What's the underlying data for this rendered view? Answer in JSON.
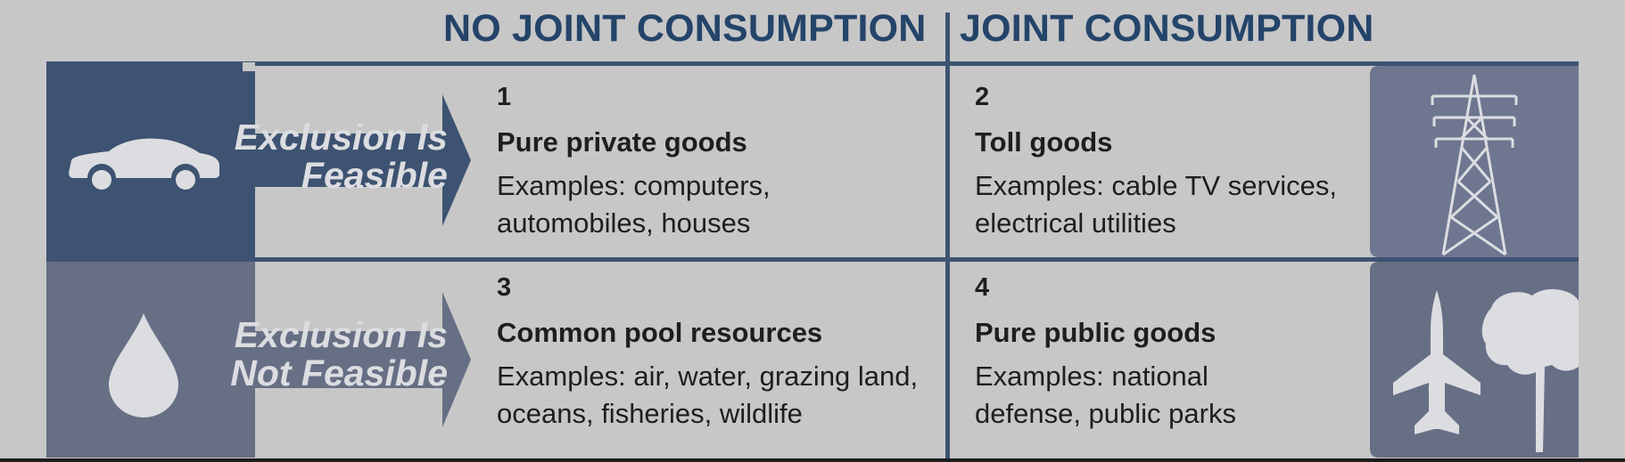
{
  "columns": {
    "left_header": "NO JOINT CONSUMPTION",
    "right_header": "JOINT CONSUMPTION"
  },
  "rows": [
    {
      "label_line1": "Exclusion Is",
      "label_line2": "Feasible",
      "icon": "car-icon",
      "color": "#3d5371"
    },
    {
      "label_line1": "Exclusion Is",
      "label_line2": "Not Feasible",
      "icon": "water-drop-icon",
      "color": "#676f85"
    }
  ],
  "cells": [
    {
      "number": "1",
      "title": "Pure private goods",
      "examples": "Examples: computers, automobiles, houses"
    },
    {
      "number": "2",
      "title": "Toll goods",
      "examples": "Examples: cable TV services, electrical utilities"
    },
    {
      "number": "3",
      "title": "Common pool resources",
      "examples": "Examples: air, water, grazing land, oceans, fisheries, wildlife"
    },
    {
      "number": "4",
      "title": "Pure public goods",
      "examples": "Examples: national defense, public parks"
    }
  ],
  "right_icons": [
    "power-tower-icon",
    "jet-and-tree-icon"
  ]
}
